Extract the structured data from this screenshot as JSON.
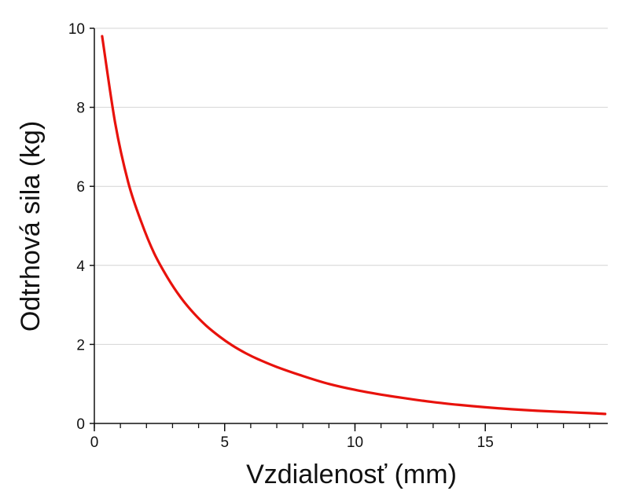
{
  "chart_data": {
    "type": "line",
    "title": "",
    "xlabel": "Vzdialenosť (mm)",
    "ylabel": "Odtrhová sila (kg)",
    "xlim": [
      0,
      19.7
    ],
    "ylim": [
      0,
      10
    ],
    "x_ticks": [
      0,
      5,
      10,
      15
    ],
    "x_tick_labels": [
      "0",
      "5",
      "10",
      "15"
    ],
    "x_minor_tick_step": 1,
    "y_ticks": [
      0,
      2,
      4,
      6,
      8,
      10
    ],
    "y_tick_labels": [
      "0",
      "2",
      "4",
      "6",
      "8",
      "10"
    ],
    "grid": "horizontal",
    "grid_color": "#d4d4d4",
    "axis_color": "#111111",
    "series": [
      {
        "color": "#e8120c",
        "x": [
          0.3,
          0.8,
          1.3,
          1.8,
          2.3,
          2.8,
          3.3,
          3.8,
          4.3,
          4.8,
          5.3,
          5.8,
          6.3,
          7,
          8,
          9,
          10,
          11,
          12,
          13,
          14,
          15,
          16,
          17,
          18,
          19,
          19.6
        ],
        "y": [
          9.8,
          7.6,
          6.1,
          5.1,
          4.3,
          3.7,
          3.2,
          2.8,
          2.47,
          2.2,
          1.97,
          1.78,
          1.62,
          1.43,
          1.2,
          1.0,
          0.85,
          0.73,
          0.63,
          0.54,
          0.47,
          0.41,
          0.36,
          0.32,
          0.29,
          0.26,
          0.24
        ]
      }
    ]
  }
}
